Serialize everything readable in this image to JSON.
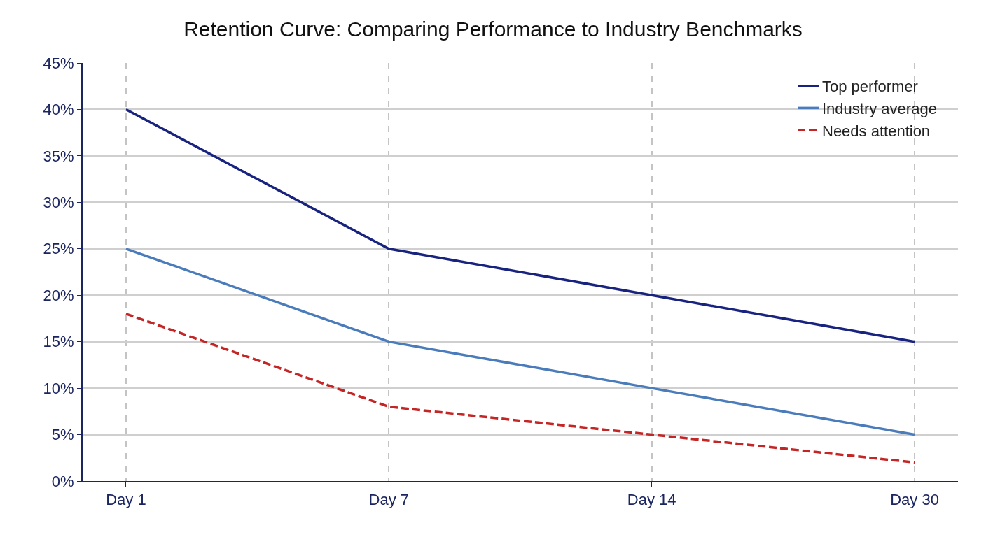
{
  "chart_data": {
    "type": "line",
    "title": "Retention Curve: Comparing Performance to Industry Benchmarks",
    "categories": [
      "Day 1",
      "Day 7",
      "Day 14",
      "Day 30"
    ],
    "series": [
      {
        "name": "Top performer",
        "color": "#18237f",
        "values": [
          40,
          25,
          20,
          15
        ],
        "line_style": "solid"
      },
      {
        "name": "Industry average",
        "color": "#4a7cbc",
        "values": [
          25,
          15,
          10,
          5
        ],
        "line_style": "solid"
      },
      {
        "name": "Needs attention",
        "color": "#c42525",
        "values": [
          18,
          8,
          5,
          2
        ],
        "line_style": "dashed"
      }
    ],
    "ylim": [
      0,
      45
    ],
    "yticks": [
      {
        "value": 0,
        "label": "0%"
      },
      {
        "value": 5,
        "label": "5%"
      },
      {
        "value": 10,
        "label": "10%"
      },
      {
        "value": 15,
        "label": "15%"
      },
      {
        "value": 20,
        "label": "20%"
      },
      {
        "value": 25,
        "label": "25%"
      },
      {
        "value": 30,
        "label": "30%"
      },
      {
        "value": 35,
        "label": "35%"
      },
      {
        "value": 40,
        "label": "40%"
      },
      {
        "value": 45,
        "label": "45%"
      }
    ],
    "grid": true,
    "legend": "top right",
    "marker": "none"
  }
}
